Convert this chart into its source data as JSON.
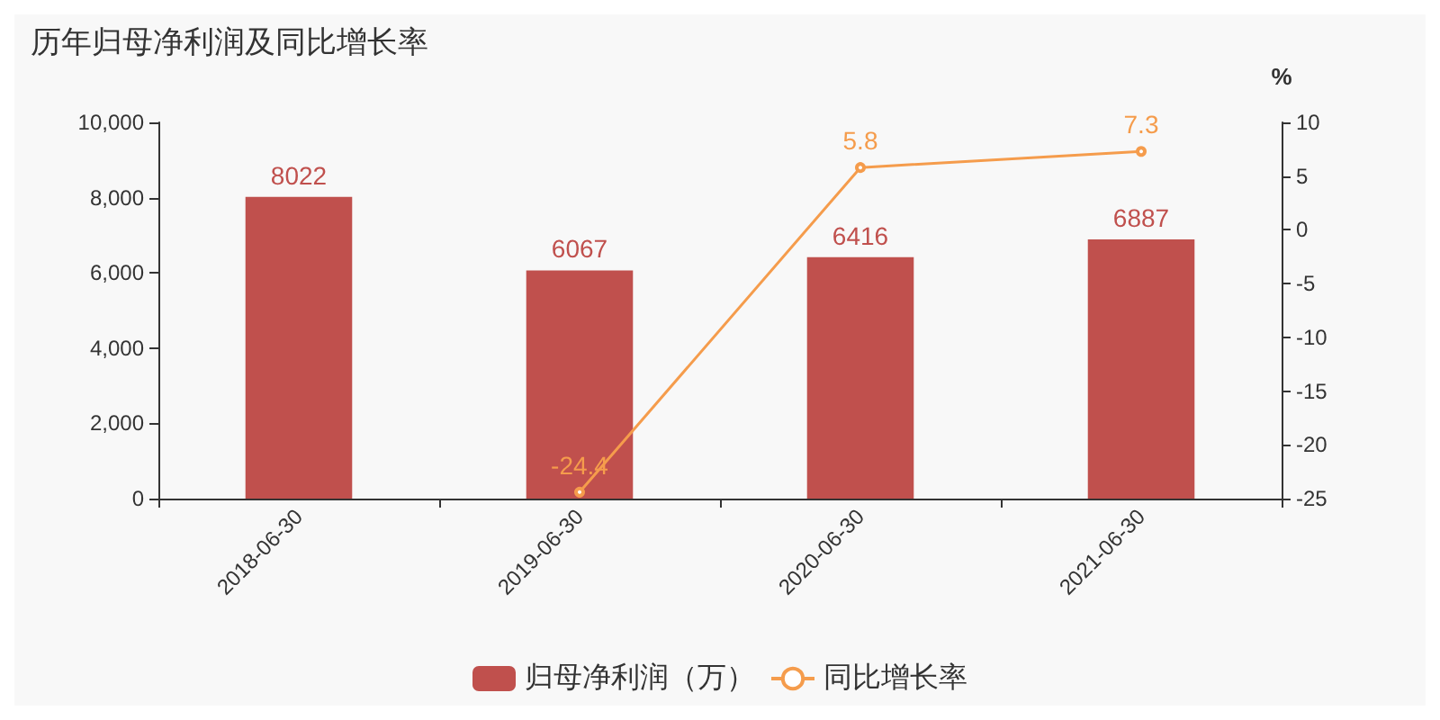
{
  "chart_data": {
    "type": "bar",
    "title": "历年归母净利润及同比增长率",
    "y2label": "%",
    "categories": [
      "2018-06-30",
      "2019-06-30",
      "2020-06-30",
      "2021-06-30"
    ],
    "series": [
      {
        "name": "归母净利润（万）",
        "color": "#c0504d",
        "values": [
          8022,
          6067,
          6416,
          6887
        ]
      },
      {
        "name": "同比增长率",
        "type": "line",
        "axis": "y2",
        "color": "#f59c4c",
        "marker": "circle",
        "values": [
          null,
          -24.4,
          5.8,
          7.3
        ]
      }
    ],
    "ylim": [
      0,
      10000
    ],
    "yticks": [
      0,
      {
        "value": 2000,
        "label": "2,000"
      },
      {
        "value": 4000,
        "label": "4,000"
      },
      {
        "value": 6000,
        "label": "6,000"
      },
      {
        "value": 8000,
        "label": "8,000"
      },
      {
        "value": 10000,
        "label": "10,000"
      }
    ],
    "y2lim": [
      -25,
      10
    ],
    "y2ticks": [
      -25,
      -20,
      -15,
      -10,
      -5,
      0,
      5,
      10
    ],
    "data_labels": true,
    "legend": "bottom",
    "grid": false
  }
}
